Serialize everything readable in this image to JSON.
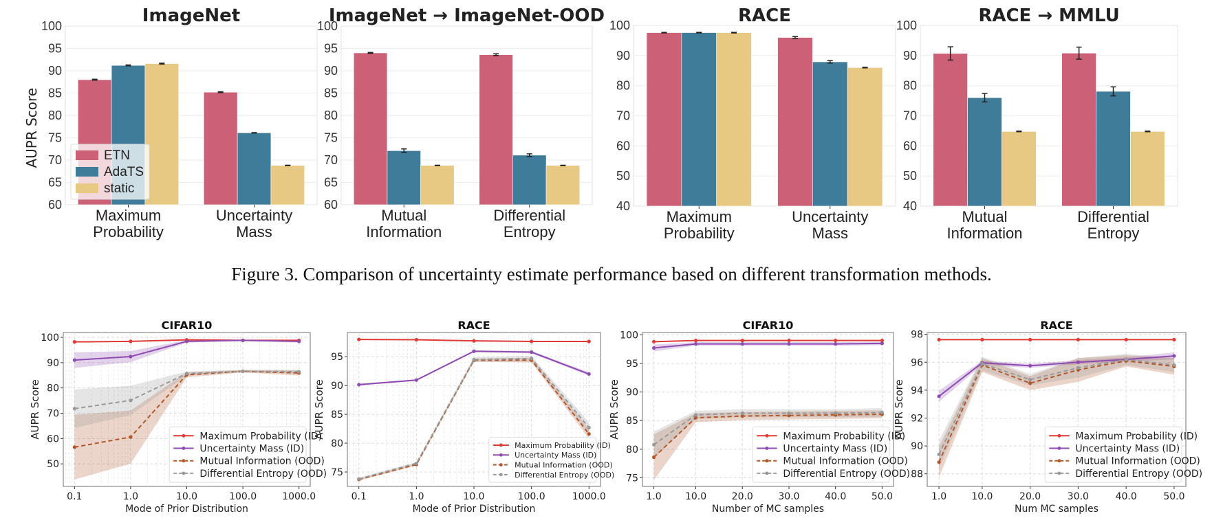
{
  "caption": "Figure 3. Comparison of uncertainty estimate performance based on different transformation methods.",
  "chart_data": [
    {
      "type": "bar",
      "title": "ImageNet",
      "ylabel": "AUPR Score",
      "categories": [
        "Maximum Probability",
        "Uncertainty Mass"
      ],
      "ylim": [
        60,
        100
      ],
      "yticks": [
        60,
        65,
        70,
        75,
        80,
        85,
        90,
        95,
        100
      ],
      "legend": "lower-left",
      "grid": true,
      "series": [
        {
          "name": "ETN",
          "values": [
            88.0,
            85.2
          ],
          "errors": [
            0.1,
            0.1
          ],
          "color": "#cc6077"
        },
        {
          "name": "AdaTS",
          "values": [
            91.2,
            76.1
          ],
          "errors": [
            0.1,
            0.05
          ],
          "color": "#3e7c99"
        },
        {
          "name": "static",
          "values": [
            91.6,
            68.8
          ],
          "errors": [
            0.1,
            0.05
          ],
          "color": "#e8c984"
        }
      ]
    },
    {
      "type": "bar",
      "title": "ImageNet → ImageNet-OOD",
      "categories": [
        "Mutual Information",
        "Differential Entropy"
      ],
      "ylim": [
        60,
        100
      ],
      "yticks": [
        60,
        65,
        70,
        75,
        80,
        85,
        90,
        95,
        100
      ],
      "grid": true,
      "series": [
        {
          "values": [
            94.0,
            93.6
          ],
          "errors": [
            0.1,
            0.2
          ],
          "color": "#cc6077"
        },
        {
          "values": [
            72.1,
            71.1
          ],
          "errors": [
            0.4,
            0.3
          ],
          "color": "#3e7c99"
        },
        {
          "values": [
            68.8,
            68.8
          ],
          "errors": [
            0.05,
            0.05
          ],
          "color": "#e8c984"
        }
      ]
    },
    {
      "type": "bar",
      "title": "RACE",
      "categories": [
        "Maximum Probability",
        "Uncertainty Mass"
      ],
      "ylim": [
        40,
        100
      ],
      "yticks": [
        40,
        50,
        60,
        70,
        80,
        90,
        100
      ],
      "grid": true,
      "series": [
        {
          "values": [
            97.6,
            96.0
          ],
          "errors": [
            0.1,
            0.3
          ],
          "color": "#cc6077"
        },
        {
          "values": [
            97.6,
            87.9
          ],
          "errors": [
            0.1,
            0.4
          ],
          "color": "#3e7c99"
        },
        {
          "values": [
            97.6,
            86.0
          ],
          "errors": [
            0.1,
            0.1
          ],
          "color": "#e8c984"
        }
      ]
    },
    {
      "type": "bar",
      "title": "RACE → MMLU",
      "categories": [
        "Mutual Information",
        "Differential Entropy"
      ],
      "ylim": [
        40,
        100
      ],
      "yticks": [
        40,
        50,
        60,
        70,
        80,
        90,
        100
      ],
      "grid": true,
      "series": [
        {
          "values": [
            90.7,
            90.8
          ],
          "errors": [
            2.2,
            2.0
          ],
          "color": "#cc6077"
        },
        {
          "values": [
            76.0,
            78.1
          ],
          "errors": [
            1.4,
            1.5
          ],
          "color": "#3e7c99"
        },
        {
          "values": [
            64.8,
            64.8
          ],
          "errors": [
            0.1,
            0.1
          ],
          "color": "#e8c984"
        }
      ]
    },
    {
      "type": "line",
      "title": "CIFAR10",
      "xlabel": "Mode of Prior Distribution",
      "ylabel": "AUPR Score",
      "xscale": "log",
      "x": [
        0.1,
        1,
        10,
        100,
        1000
      ],
      "xticklabels": [
        "0.1",
        "1.0",
        "10.0",
        "100.0",
        "1000.0"
      ],
      "ylim": [
        41.1,
        101.9
      ],
      "yticks": [
        50,
        60,
        70,
        80,
        90,
        100
      ],
      "legend": "lower-right",
      "grid": true,
      "series": [
        {
          "name": "Maximum Probability (ID)",
          "values": [
            98.2,
            98.4,
            99.0,
            98.8,
            98.8
          ],
          "band": [
            0.2,
            0.2,
            0.2,
            0.2,
            0.2
          ],
          "color": "#e03a35",
          "style": "solid"
        },
        {
          "name": "Uncertainty Mass (ID)",
          "values": [
            91.0,
            92.4,
            98.4,
            98.8,
            98.4
          ],
          "band": [
            3.1,
            2.2,
            0.5,
            0.3,
            0.5
          ],
          "color": "#8e4bb0",
          "style": "solid"
        },
        {
          "name": "Mutual Information (OOD)",
          "values": [
            56.6,
            60.6,
            85.2,
            86.6,
            85.9
          ],
          "band": [
            12.8,
            10.5,
            1.0,
            0.5,
            1.0
          ],
          "color": "#b0582c",
          "style": "dashed"
        },
        {
          "name": "Differential Entropy (OOD)",
          "values": [
            71.8,
            75.1,
            85.7,
            86.6,
            86.4
          ],
          "band": [
            7.6,
            5.8,
            0.8,
            0.5,
            0.8
          ],
          "color": "#999999",
          "style": "dashed"
        }
      ]
    },
    {
      "type": "line",
      "title": "RACE",
      "xlabel": "Mode of Prior Distribution",
      "ylabel": "AUPR Score",
      "xscale": "log",
      "x": [
        0.1,
        1,
        10,
        100,
        1000
      ],
      "xticklabels": [
        "0.1",
        "1.0",
        "10.0",
        "100.0",
        "1000.0"
      ],
      "ylim": [
        72.5,
        99.2
      ],
      "yticks": [
        75,
        80,
        85,
        90,
        95
      ],
      "legend": "lower-right",
      "grid": true,
      "series": [
        {
          "name": "Maximum Probability (ID)",
          "values": [
            98.0,
            97.95,
            97.75,
            97.65,
            97.65
          ],
          "band": [
            0.1,
            0.1,
            0.1,
            0.1,
            0.1
          ],
          "color": "#e03a35",
          "style": "solid"
        },
        {
          "name": "Uncertainty Mass (ID)",
          "values": [
            90.15,
            90.95,
            95.95,
            95.8,
            92.0
          ],
          "band": [
            0.15,
            0.15,
            0.15,
            0.2,
            0.3
          ],
          "color": "#8e4bb0",
          "style": "solid"
        },
        {
          "name": "Mutual Information (OOD)",
          "values": [
            73.7,
            76.3,
            94.4,
            94.4,
            81.6
          ],
          "band": [
            0.2,
            0.2,
            0.3,
            0.4,
            0.8
          ],
          "color": "#b0582c",
          "style": "dashed"
        },
        {
          "name": "Differential Entropy (OOD)",
          "values": [
            73.8,
            76.5,
            94.5,
            94.7,
            82.7
          ],
          "band": [
            0.2,
            0.2,
            0.4,
            0.5,
            0.9
          ],
          "color": "#999999",
          "style": "dashed"
        }
      ]
    },
    {
      "type": "line",
      "title": "CIFAR10",
      "xlabel": "Number of MC samples",
      "ylabel": "AUPR Score",
      "xscale": "linear",
      "x": [
        1,
        10,
        20,
        30,
        40,
        50
      ],
      "xticklabels": [
        "1.0",
        "10.0",
        "20.0",
        "30.0",
        "40.0",
        "50.0"
      ],
      "ylim": [
        73.5,
        100.4
      ],
      "yticks": [
        75,
        80,
        85,
        90,
        95,
        100
      ],
      "legend": "lower-right",
      "grid": true,
      "series": [
        {
          "name": "Maximum Probability (ID)",
          "values": [
            98.8,
            99.0,
            99.0,
            99.0,
            99.0,
            99.0
          ],
          "band": [
            0.1,
            0.1,
            0.1,
            0.1,
            0.1,
            0.1
          ],
          "color": "#e03a35",
          "style": "solid"
        },
        {
          "name": "Uncertainty Mass (ID)",
          "values": [
            97.7,
            98.4,
            98.4,
            98.4,
            98.4,
            98.5
          ],
          "band": [
            0.6,
            0.3,
            0.3,
            0.3,
            0.3,
            0.3
          ],
          "color": "#8e4bb0",
          "style": "solid"
        },
        {
          "name": "Mutual Information (OOD)",
          "values": [
            78.6,
            85.5,
            85.8,
            85.9,
            86.0,
            86.1
          ],
          "band": [
            4.0,
            0.8,
            0.7,
            0.7,
            0.7,
            0.7
          ],
          "color": "#b0582c",
          "style": "dashed"
        },
        {
          "name": "Differential Entropy (OOD)",
          "values": [
            80.8,
            86.0,
            86.3,
            86.3,
            86.3,
            86.4
          ],
          "band": [
            2.3,
            0.7,
            0.7,
            0.7,
            0.7,
            0.8
          ],
          "color": "#999999",
          "style": "dashed"
        }
      ]
    },
    {
      "type": "line",
      "title": "RACE",
      "xlabel": "Num MC samples",
      "ylabel": "AUPR Score",
      "xscale": "linear",
      "x": [
        1,
        10,
        20,
        30,
        40,
        50
      ],
      "xticklabels": [
        "1.0",
        "10.0",
        "20.0",
        "30.0",
        "40.0",
        "50.0"
      ],
      "ylim": [
        87.1,
        98.13
      ],
      "yticks": [
        88,
        90,
        92,
        94,
        96,
        98
      ],
      "legend": "lower-right",
      "grid": true,
      "series": [
        {
          "name": "Maximum Probability (ID)",
          "values": [
            97.62,
            97.62,
            97.62,
            97.62,
            97.62,
            97.62
          ],
          "band": [
            0.02,
            0.02,
            0.02,
            0.02,
            0.02,
            0.02
          ],
          "color": "#e03a35",
          "style": "solid"
        },
        {
          "name": "Uncertainty Mass (ID)",
          "values": [
            93.56,
            95.96,
            95.75,
            96.0,
            96.2,
            96.45
          ],
          "band": [
            0.4,
            0.15,
            0.15,
            0.15,
            0.15,
            0.25
          ],
          "color": "#8e4bb0",
          "style": "solid"
        },
        {
          "name": "Mutual Information (OOD)",
          "values": [
            88.84,
            95.8,
            94.5,
            95.45,
            96.1,
            95.7
          ],
          "band": [
            1.1,
            0.5,
            0.5,
            0.85,
            0.4,
            0.6
          ],
          "color": "#b0582c",
          "style": "dashed"
        },
        {
          "name": "Differential Entropy (OOD)",
          "values": [
            89.4,
            95.9,
            94.75,
            95.6,
            96.2,
            95.8
          ],
          "band": [
            1.0,
            0.5,
            0.4,
            0.7,
            0.4,
            0.5
          ],
          "color": "#999999",
          "style": "dashed"
        }
      ]
    }
  ]
}
